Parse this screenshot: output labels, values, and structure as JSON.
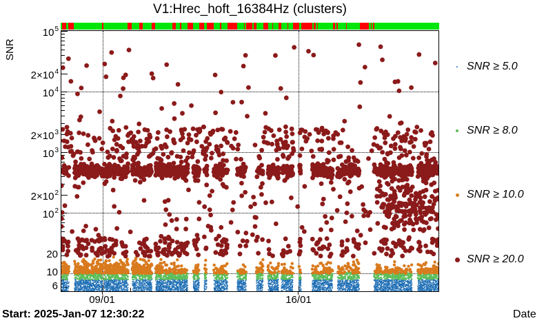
{
  "title": "V1:Hrec_hoft_16384Hz (clusters)",
  "chart_data": {
    "type": "scatter",
    "title": "V1:Hrec_hoft_16384Hz (clusters)",
    "xlabel": "Date",
    "ylabel": "SNR",
    "x_axis": {
      "start_label": "Start: 2025-Jan-07 12:30:22",
      "ticks": [
        {
          "label": "09/01",
          "f": 0.109
        },
        {
          "label": "16/01",
          "f": 0.628
        }
      ],
      "minor_tick_origin_f": 0.109,
      "minor_tick_spacing_f": 0.0742
    },
    "y_axis": {
      "label": "SNR",
      "scale": "log",
      "min": 5.0,
      "max": 100000,
      "gridline_values": [
        10000,
        1000,
        100,
        10
      ],
      "tick_labels": [
        {
          "value": 100000,
          "mantissa": "10",
          "exp": "5"
        },
        {
          "value": 20000,
          "mantissa": "2×10",
          "exp": "4"
        },
        {
          "value": 10000,
          "mantissa": "10",
          "exp": "4"
        },
        {
          "value": 2000,
          "mantissa": "2×10",
          "exp": "3"
        },
        {
          "value": 1000,
          "mantissa": "10",
          "exp": "3"
        },
        {
          "value": 200,
          "mantissa": "2×10",
          "exp": "2"
        },
        {
          "value": 100,
          "mantissa": "10",
          "exp": "2"
        },
        {
          "value": 20,
          "mantissa": "20",
          "exp": ""
        },
        {
          "value": 10,
          "mantissa": "10",
          "exp": ""
        },
        {
          "value": 6,
          "mantissa": "6",
          "exp": ""
        }
      ]
    },
    "status_bar": {
      "ok_color": "#00E60A",
      "alert_color": "#FF0000",
      "red_segments": [
        [
          0.004,
          0.015
        ],
        [
          0.02,
          0.035
        ],
        [
          0.109,
          0.113
        ],
        [
          0.177,
          0.188
        ],
        [
          0.208,
          0.217
        ],
        [
          0.24,
          0.25
        ],
        [
          0.295,
          0.304
        ],
        [
          0.315,
          0.319
        ],
        [
          0.335,
          0.35
        ],
        [
          0.366,
          0.379
        ],
        [
          0.386,
          0.404
        ],
        [
          0.421,
          0.424
        ],
        [
          0.441,
          0.466
        ],
        [
          0.484,
          0.486
        ],
        [
          0.49,
          0.506
        ],
        [
          0.51,
          0.517
        ],
        [
          0.535,
          0.548
        ],
        [
          0.559,
          0.561
        ],
        [
          0.576,
          0.583
        ],
        [
          0.599,
          0.601
        ],
        [
          0.614,
          0.63
        ],
        [
          0.636,
          0.665
        ],
        [
          0.668,
          0.674
        ],
        [
          0.678,
          0.679
        ],
        [
          0.719,
          0.725
        ],
        [
          0.729,
          0.732
        ],
        [
          0.754,
          0.756
        ],
        [
          0.79,
          0.814
        ],
        [
          0.82,
          0.821
        ],
        [
          0.825,
          0.829
        ]
      ]
    },
    "data_gaps_f": [
      [
        0.02,
        0.035
      ],
      [
        0.109,
        0.113
      ],
      [
        0.177,
        0.188
      ],
      [
        0.24,
        0.25
      ],
      [
        0.335,
        0.35
      ],
      [
        0.366,
        0.379
      ],
      [
        0.386,
        0.404
      ],
      [
        0.441,
        0.466
      ],
      [
        0.49,
        0.517
      ],
      [
        0.535,
        0.548
      ],
      [
        0.576,
        0.583
      ],
      [
        0.614,
        0.63
      ],
      [
        0.636,
        0.665
      ],
      [
        0.719,
        0.732
      ],
      [
        0.79,
        0.829
      ],
      [
        0.93,
        0.945
      ]
    ],
    "seed": 1234,
    "series": [
      {
        "name": "snr5",
        "label": "SNR ≥ 5.0",
        "color": "#1F6FB5",
        "marker_radius": 0.8,
        "legend_marker_px": 2,
        "components": [
          {
            "n": 5200,
            "x": {
              "type": "uniform",
              "range": [
                0,
                1
              ],
              "avoid_gaps": true
            },
            "ylog": {
              "type": "uniform",
              "range": [
                0.705,
                0.9
              ]
            }
          }
        ]
      },
      {
        "name": "snr8",
        "label": "SNR ≥ 8.0",
        "color": "#5CBE5A",
        "marker_radius": 1.3,
        "legend_marker_px": 4,
        "components": [
          {
            "n": 1600,
            "x": {
              "type": "uniform",
              "range": [
                0,
                1
              ],
              "avoid_gaps": true
            },
            "ylog": {
              "type": "uniform",
              "range": [
                0.9,
                1.02
              ]
            }
          }
        ]
      },
      {
        "name": "snr10",
        "label": "SNR ≥ 10.0",
        "color": "#D97A1E",
        "marker_radius": 2.2,
        "legend_marker_px": 5,
        "components": [
          {
            "n": 560,
            "x": {
              "type": "uniform",
              "range": [
                0,
                0.27
              ],
              "avoid_gaps": true
            },
            "ylog": {
              "type": "halfnormal",
              "base": 1.0,
              "sigma": 0.095,
              "max": 1.3
            }
          },
          {
            "n": 440,
            "x": {
              "type": "uniform",
              "range": [
                0.27,
                1
              ],
              "avoid_gaps": true
            },
            "ylog": {
              "type": "halfnormal",
              "base": 1.0,
              "sigma": 0.075,
              "max": 1.3
            }
          }
        ]
      },
      {
        "name": "snr20",
        "label": "SNR ≥ 20.0",
        "color": "#8B1A1A",
        "marker_radius": 3.4,
        "legend_marker_px": 7,
        "components": [
          {
            "n": 1000,
            "x": {
              "type": "uniform",
              "range": [
                0,
                1
              ],
              "avoid_gaps": true
            },
            "ylog": {
              "type": "normal",
              "mean": 2.69,
              "sigma": 0.045
            }
          },
          {
            "n": 180,
            "x": {
              "type": "uniform",
              "range": [
                0,
                1
              ],
              "avoid_gaps": true
            },
            "ylog": {
              "type": "normal",
              "mean": 2.69,
              "sigma": 0.13
            }
          },
          {
            "n": 330,
            "x": {
              "type": "clusters",
              "centers": [
                0.02,
                0.06,
                0.13,
                0.16,
                0.2,
                0.24,
                0.28,
                0.32,
                0.36,
                0.4,
                0.44,
                0.55,
                0.58,
                0.62,
                0.66,
                0.7,
                0.74,
                0.85,
                0.89,
                0.93,
                0.97
              ],
              "sigma": 0.018
            },
            "ylog": {
              "type": "uniform",
              "range": [
                2.85,
                3.42
              ]
            }
          },
          {
            "n": 60,
            "x": {
              "type": "uniform",
              "range": [
                0,
                1
              ]
            },
            "ylog": {
              "type": "uniform",
              "range": [
                3.45,
                4.78
              ]
            }
          },
          {
            "n": 130,
            "x": {
              "type": "uniform",
              "range": [
                0,
                1
              ]
            },
            "ylog": {
              "type": "uniform",
              "range": [
                1.5,
                2.5
              ]
            }
          },
          {
            "n": 170,
            "x": {
              "type": "normal",
              "mean": 0.915,
              "sigma": 0.05,
              "clamp": [
                0.8,
                0.999
              ]
            },
            "ylog": {
              "type": "normal",
              "mean": 2.1,
              "sigma": 0.22,
              "clamp": [
                1.55,
                2.55
              ]
            }
          },
          {
            "n": 160,
            "x": {
              "type": "uniform",
              "range": [
                0,
                0.45
              ],
              "avoid_gaps": true
            },
            "ylog": {
              "type": "uniform",
              "range": [
                1.28,
                1.58
              ]
            }
          },
          {
            "n": 100,
            "x": {
              "type": "uniform",
              "range": [
                0.45,
                1
              ],
              "avoid_gaps": true
            },
            "ylog": {
              "type": "uniform",
              "range": [
                1.28,
                1.58
              ]
            }
          }
        ]
      }
    ]
  }
}
